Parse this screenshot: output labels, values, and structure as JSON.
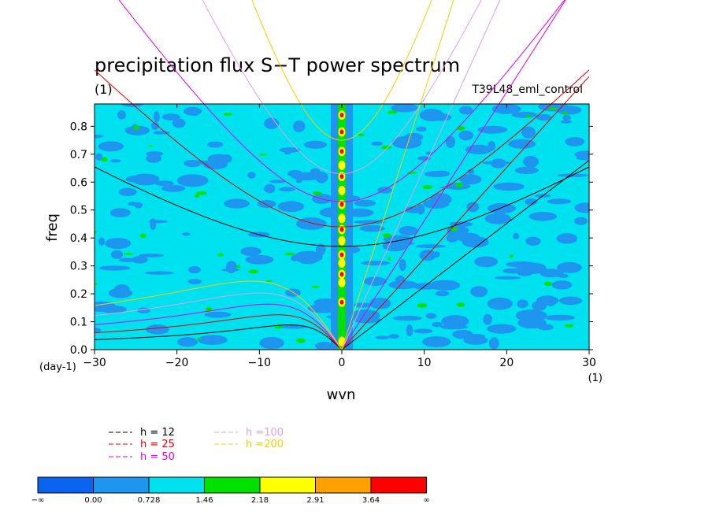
{
  "chart_data": {
    "type": "heatmap",
    "title": "precipitation flux S−T power spectrum",
    "subtitle_left": "(1)",
    "subtitle_right": "T39L48_eml_control",
    "xlabel": "wvn",
    "ylabel": "freq",
    "x_unit_label": "(1)",
    "y_unit_label": "(day-1)",
    "xlim": [
      -30,
      30
    ],
    "ylim": [
      0.0,
      0.88
    ],
    "x_ticks": [
      -30,
      -20,
      -10,
      0,
      10,
      20,
      30
    ],
    "x_tick_labels": [
      "−30",
      "−20",
      "−10",
      "0",
      "10",
      "20",
      "30"
    ],
    "y_ticks": [
      0.0,
      0.1,
      0.2,
      0.3,
      0.4,
      0.5,
      0.6,
      0.7,
      0.8
    ],
    "y_tick_labels": [
      "0.0",
      "0.1",
      "0.2",
      "0.3",
      "0.4",
      "0.5",
      "0.6",
      "0.7",
      "0.8"
    ],
    "colorbar": {
      "levels": [
        "−∞",
        "0.00",
        "0.728",
        "1.46",
        "2.18",
        "2.91",
        "3.64",
        "∞"
      ],
      "colors": [
        "#0a64f0",
        "#1e96f0",
        "#00e1f0",
        "#00e100",
        "#ffff00",
        "#ffa000",
        "#ff0000"
      ]
    },
    "field_description_levels": {
      "background": 2,
      "blotches": 1,
      "hot_column_x": 0
    },
    "dispersion_curves": [
      {
        "name": "h = 12",
        "color": "#000000"
      },
      {
        "name": "h = 25",
        "color": "#e00000"
      },
      {
        "name": "h = 50",
        "color": "#e000e0"
      },
      {
        "name": "h =100",
        "color": "#e0a0e0"
      },
      {
        "name": "h =200",
        "color": "#f0d000"
      }
    ]
  }
}
